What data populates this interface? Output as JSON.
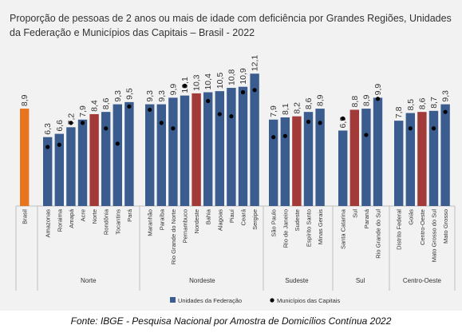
{
  "title": "Proporção de pessoas de 2 anos ou mais de idade com deficiência por Grandes Regiões, Unidades da Federação e Municípios das Capitais – Brasil - 2022",
  "source": "Fonte: IBGE - Pesquisa Nacional por Amostra de Domicílios Contínua 2022",
  "colors": {
    "uf": "#3a5c8f",
    "region": "#a33a3a",
    "brasil": "#e8741e",
    "capital": "#000000"
  },
  "chart_data": {
    "type": "bar",
    "title": "Proporção de pessoas de 2 anos ou mais de idade com deficiência por Grandes Regiões, Unidades da Federação e Municípios das Capitais – Brasil - 2022",
    "legend": {
      "position": "bottom",
      "entries": [
        "Unidades da Federação",
        "Municípios das Capitais"
      ]
    },
    "groups": [
      {
        "name": "",
        "bars": [
          {
            "label": "Brasil",
            "value": 8.9,
            "value_label": "8,9",
            "kind": "brasil",
            "capital": null
          }
        ]
      },
      {
        "name": "Norte",
        "bars": [
          {
            "label": "Amazonas",
            "value": 6.3,
            "value_label": "6,3",
            "kind": "uf",
            "capital": 5.4
          },
          {
            "label": "Roraima",
            "value": 6.6,
            "value_label": "6,6",
            "kind": "uf",
            "capital": 5.6
          },
          {
            "label": "Amapá",
            "value": 7.2,
            "value_label": "7,2",
            "kind": "uf",
            "capital": 7.6
          },
          {
            "label": "Acre",
            "value": 7.9,
            "value_label": "7,9",
            "kind": "uf",
            "capital": 7.6
          },
          {
            "label": "Norte",
            "value": 8.4,
            "value_label": "8,4",
            "kind": "region",
            "capital": null
          },
          {
            "label": "Rondônia",
            "value": 8.6,
            "value_label": "8,6",
            "kind": "uf",
            "capital": 7.1
          },
          {
            "label": "Tocantins",
            "value": 9.3,
            "value_label": "9,3",
            "kind": "uf",
            "capital": 5.7
          },
          {
            "label": "Pará",
            "value": 9.5,
            "value_label": "9,5",
            "kind": "uf",
            "capital": 9.1
          }
        ]
      },
      {
        "name": "Nordeste",
        "bars": [
          {
            "label": "Maranhão",
            "value": 9.3,
            "value_label": "9,3",
            "kind": "uf",
            "capital": 8.8
          },
          {
            "label": "Paraíba",
            "value": 9.3,
            "value_label": "9,3",
            "kind": "uf",
            "capital": 7.6
          },
          {
            "label": "Rio Grande do Norte",
            "value": 9.9,
            "value_label": "9,9",
            "kind": "uf",
            "capital": 7.1
          },
          {
            "label": "Pernambuco",
            "value": 10.1,
            "value_label": "10,1",
            "kind": "uf",
            "capital": 11.0
          },
          {
            "label": "Nordeste",
            "value": 10.3,
            "value_label": "10,3",
            "kind": "region",
            "capital": null
          },
          {
            "label": "Bahia",
            "value": 10.4,
            "value_label": "10,4",
            "kind": "uf",
            "capital": 9.6
          },
          {
            "label": "Alagoas",
            "value": 10.5,
            "value_label": "10,5",
            "kind": "uf",
            "capital": 8.4
          },
          {
            "label": "Piauí",
            "value": 10.8,
            "value_label": "10,8",
            "kind": "uf",
            "capital": 8.2
          },
          {
            "label": "Ceará",
            "value": 10.9,
            "value_label": "10,9",
            "kind": "uf",
            "capital": 10.4
          },
          {
            "label": "Sergipe",
            "value": 12.1,
            "value_label": "12,1",
            "kind": "uf",
            "capital": 10.6
          }
        ]
      },
      {
        "name": "Sudeste",
        "bars": [
          {
            "label": "São Paulo",
            "value": 7.9,
            "value_label": "7,9",
            "kind": "uf",
            "capital": 6.3
          },
          {
            "label": "Rio de Janeiro",
            "value": 8.1,
            "value_label": "8,1",
            "kind": "uf",
            "capital": 6.4
          },
          {
            "label": "Sudeste",
            "value": 8.2,
            "value_label": "8,2",
            "kind": "region",
            "capital": null
          },
          {
            "label": "Espírito Santo",
            "value": 8.6,
            "value_label": "8,6",
            "kind": "uf",
            "capital": 7.7
          },
          {
            "label": "Minas Gerais",
            "value": 8.9,
            "value_label": "8,9",
            "kind": "uf",
            "capital": 7.6
          }
        ]
      },
      {
        "name": "Sul",
        "bars": [
          {
            "label": "Santa Catarina",
            "value": 6.9,
            "value_label": "6,9",
            "kind": "uf",
            "capital": 8.0
          },
          {
            "label": "Sul",
            "value": 8.8,
            "value_label": "8,8",
            "kind": "region",
            "capital": null
          },
          {
            "label": "Paraná",
            "value": 8.9,
            "value_label": "8,9",
            "kind": "uf",
            "capital": 6.5
          },
          {
            "label": "Rio Grande do Sul",
            "value": 9.9,
            "value_label": "9,9",
            "kind": "uf",
            "capital": 9.8
          }
        ]
      },
      {
        "name": "Centro-Oeste",
        "bars": [
          {
            "label": "Distrito Federal",
            "value": 7.8,
            "value_label": "7,8",
            "kind": "uf",
            "capital": null
          },
          {
            "label": "Goiás",
            "value": 8.5,
            "value_label": "8,5",
            "kind": "uf",
            "capital": 7.1
          },
          {
            "label": "Centro-Oeste",
            "value": 8.6,
            "value_label": "8,6",
            "kind": "region",
            "capital": null
          },
          {
            "label": "Mato Grosso do Sul",
            "value": 8.7,
            "value_label": "8,7",
            "kind": "uf",
            "capital": 7.1
          },
          {
            "label": "Mato Grosso",
            "value": 9.3,
            "value_label": "9,3",
            "kind": "uf",
            "capital": 8.6
          }
        ]
      }
    ]
  }
}
